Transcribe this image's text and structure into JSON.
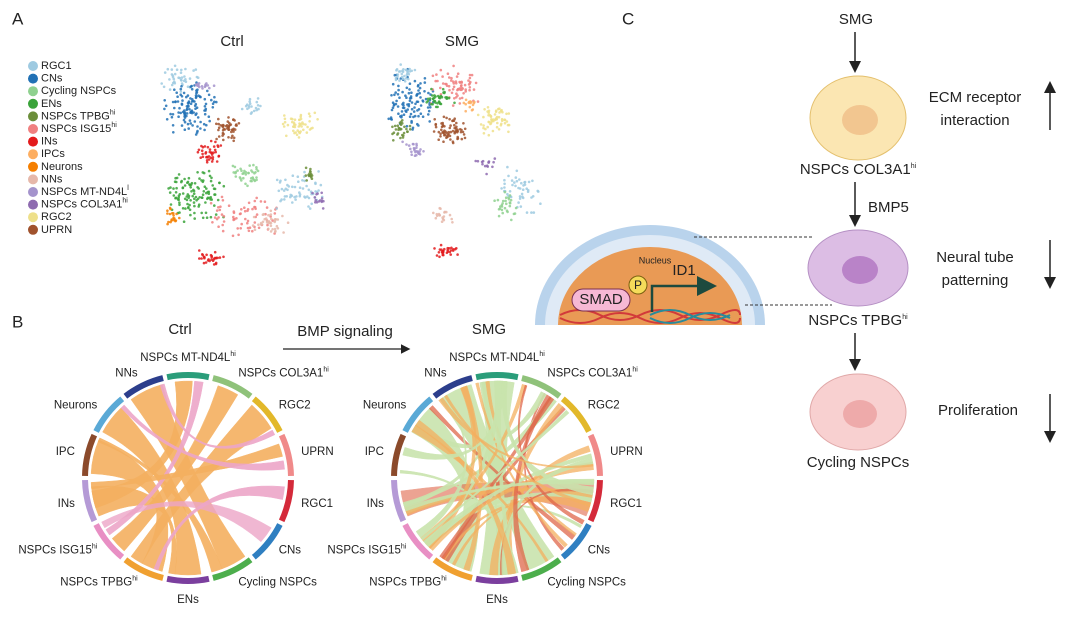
{
  "panel_a": {
    "label": "A",
    "titles": [
      "Ctrl",
      "SMG"
    ],
    "legend": [
      {
        "text": "RGC1",
        "color": "#9ecae1"
      },
      {
        "text": "CNs",
        "color": "#2171b5"
      },
      {
        "text": "Cycling NSPCs",
        "color": "#8fd18f"
      },
      {
        "text": "ENs",
        "color": "#3aa33a"
      },
      {
        "text": "NSPCs TPBG",
        "sup": "hi",
        "color": "#6b8e3a"
      },
      {
        "text": "NSPCs ISG15",
        "sup": "hi",
        "color": "#f08080"
      },
      {
        "text": "INs",
        "color": "#e31a1c"
      },
      {
        "text": "IPCs",
        "color": "#fdae61"
      },
      {
        "text": "Neurons",
        "color": "#f57f00"
      },
      {
        "text": "NNs",
        "color": "#e6b8aa"
      },
      {
        "text": "NSPCs MT-ND4L",
        "sup": "l",
        "color": "#a493cc"
      },
      {
        "text": "NSPCs COL3A1",
        "sup": "hi",
        "color": "#8e6bb0"
      },
      {
        "text": "RGC2",
        "color": "#eee08a"
      },
      {
        "text": "UPRN",
        "color": "#a0522d"
      }
    ]
  },
  "panel_b": {
    "label": "B",
    "titles": [
      "Ctrl",
      "SMG"
    ],
    "arrow_label": "BMP signaling",
    "segments": [
      {
        "text": "NSPCs MT-ND4L",
        "sup": "hi",
        "color": "#2a9d7a"
      },
      {
        "text": "NSPCs COL3A1",
        "sup": "hi",
        "color": "#8fc27a"
      },
      {
        "text": "RGC2",
        "color": "#e2b82a"
      },
      {
        "text": "UPRN",
        "color": "#f08a8a"
      },
      {
        "text": "RGC1",
        "color": "#d42a3a"
      },
      {
        "text": "CNs",
        "color": "#2f7fc1"
      },
      {
        "text": "Cycling NSPCs",
        "color": "#4cae4c"
      },
      {
        "text": "ENs",
        "color": "#7b3f9e"
      },
      {
        "text": "NSPCs TPBG",
        "sup": "hi",
        "color": "#f0a030"
      },
      {
        "text": "NSPCs ISG15",
        "sup": "hi",
        "color": "#e88fc4"
      },
      {
        "text": "INs",
        "color": "#b59ad6"
      },
      {
        "text": "IPC",
        "color": "#8b4a2b"
      },
      {
        "text": "Neurons",
        "color": "#5aa9d6"
      },
      {
        "text": "NNs",
        "color": "#2c3e8c"
      }
    ]
  },
  "panel_c": {
    "label": "C",
    "top": "SMG",
    "bmp": "BMP5",
    "cells": [
      {
        "text": "NSPCs COL3A1",
        "sup": "hi",
        "effect": [
          "ECM receptor",
          "interaction"
        ]
      },
      {
        "text": "NSPCs TPBG",
        "sup": "hi",
        "effect": [
          "Neural tube",
          "patterning"
        ]
      },
      {
        "text": "Cycling NSPCs",
        "effect": [
          "Proliferation"
        ]
      }
    ],
    "inset": {
      "nucleus": "Nucleus",
      "smad": "SMAD",
      "p": "P",
      "gene": "ID1"
    }
  }
}
